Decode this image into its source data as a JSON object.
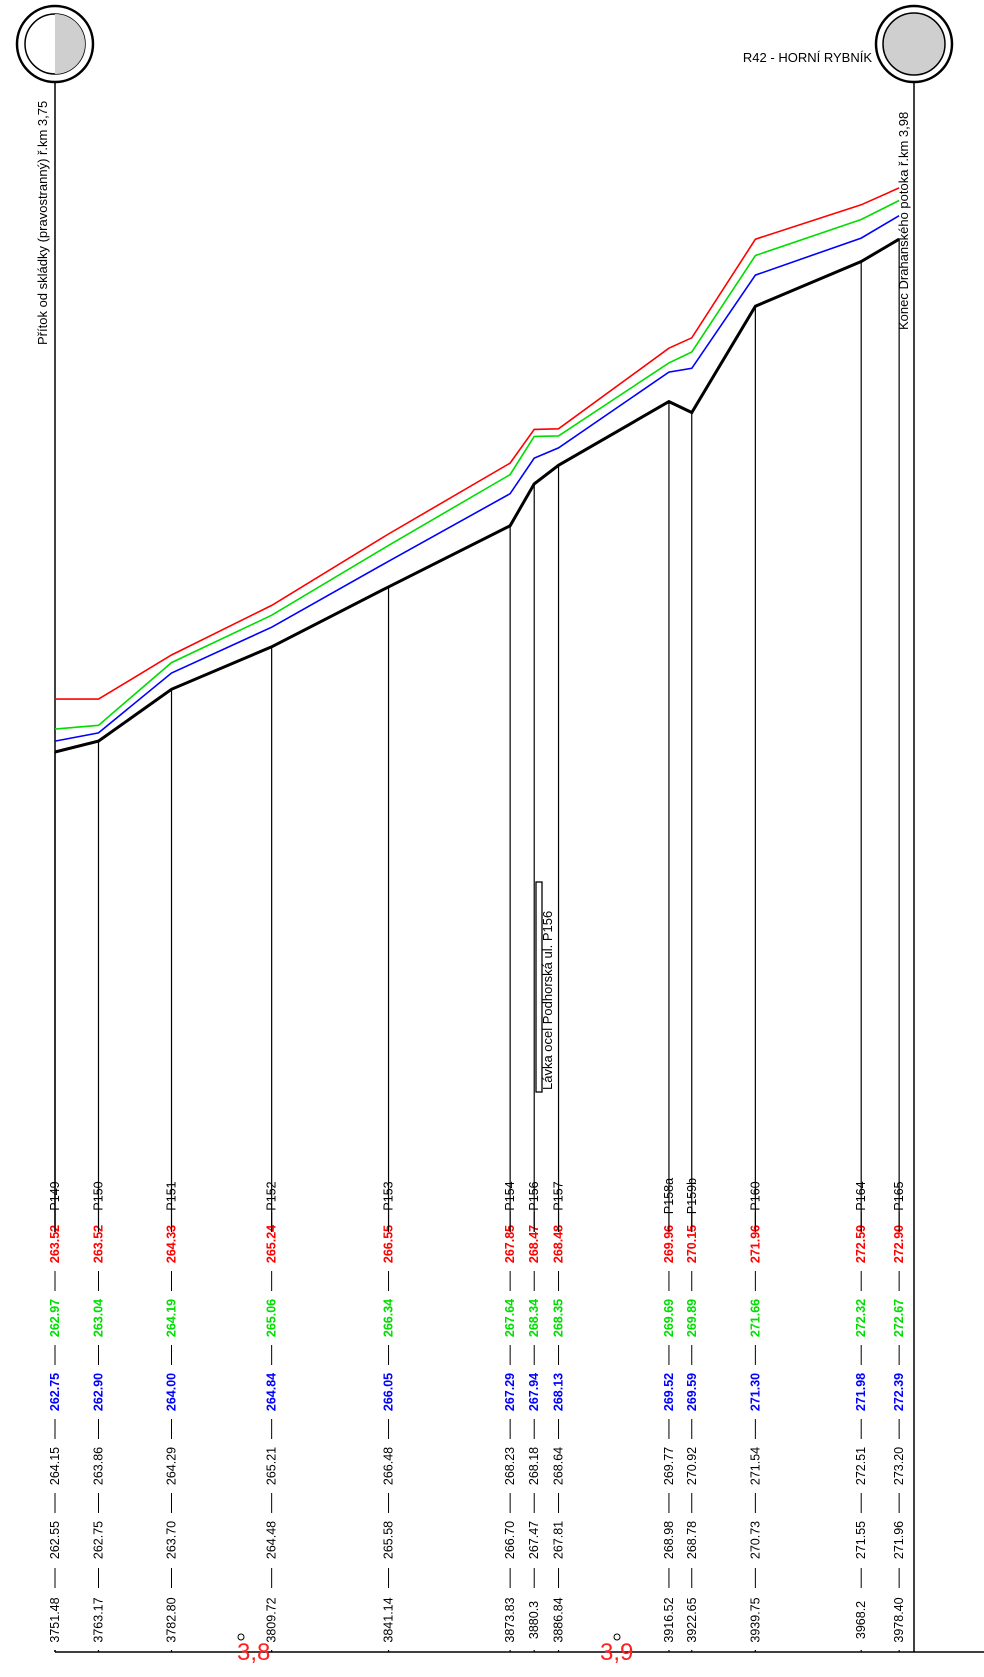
{
  "top_labels": {
    "left_ref": "Přítok od skládky (pravostranný) ř.km 3,75",
    "right_title": "R42 - HORNÍ RYBNÍK",
    "right_ref": "Konec Drahanského potoka ř.km 3,98"
  },
  "km_marks": [
    "3,8",
    "3,9"
  ],
  "bridge_label": "Lávka ocel Podhorská ul. P156",
  "colors": {
    "red": "#ff0000",
    "green": "#00dd00",
    "blue": "#0000ff",
    "black": "#000000"
  },
  "profiles": [
    {
      "station": "3751.48",
      "bed": "262.55",
      "bank": "264.15",
      "q_blue": "262.75",
      "q_green": "262.97",
      "q_red": "263.52",
      "id": "P149"
    },
    {
      "station": "3763.17",
      "bed": "262.75",
      "bank": "263.86",
      "q_blue": "262.90",
      "q_green": "263.04",
      "q_red": "263.52",
      "id": "P150"
    },
    {
      "station": "3782.80",
      "bed": "263.70",
      "bank": "264.29",
      "q_blue": "264.00",
      "q_green": "264.19",
      "q_red": "264.33",
      "id": "P151"
    },
    {
      "station": "3809.72",
      "bed": "264.48",
      "bank": "265.21",
      "q_blue": "264.84",
      "q_green": "265.06",
      "q_red": "265.24",
      "id": "P152"
    },
    {
      "station": "3841.14",
      "bed": "265.58",
      "bank": "266.48",
      "q_blue": "266.05",
      "q_green": "266.34",
      "q_red": "266.55",
      "id": "P153"
    },
    {
      "station": "3873.83",
      "bed": "266.70",
      "bank": "268.23",
      "q_blue": "267.29",
      "q_green": "267.64",
      "q_red": "267.85",
      "id": "P154"
    },
    {
      "station": "3880.3",
      "bed": "267.47",
      "bank": "268.18",
      "q_blue": "267.94",
      "q_green": "268.34",
      "q_red": "268.47",
      "id": "P156"
    },
    {
      "station": "3886.84",
      "bed": "267.81",
      "bank": "268.64",
      "q_blue": "268.13",
      "q_green": "268.35",
      "q_red": "268.48",
      "id": "P157"
    },
    {
      "station": "3916.52",
      "bed": "268.98",
      "bank": "269.77",
      "q_blue": "269.52",
      "q_green": "269.69",
      "q_red": "269.96",
      "id": "P158a"
    },
    {
      "station": "3922.65",
      "bed": "268.78",
      "bank": "270.92",
      "q_blue": "269.59",
      "q_green": "269.89",
      "q_red": "270.15",
      "id": "P159b"
    },
    {
      "station": "3939.75",
      "bed": "270.73",
      "bank": "271.54",
      "q_blue": "271.30",
      "q_green": "271.66",
      "q_red": "271.96",
      "id": "P160"
    },
    {
      "station": "3968.2",
      "bed": "271.55",
      "bank": "272.51",
      "q_blue": "271.98",
      "q_green": "272.32",
      "q_red": "272.59",
      "id": "P164"
    },
    {
      "station": "3978.40",
      "bed": "271.96",
      "bank": "273.20",
      "q_blue": "272.39",
      "q_green": "272.67",
      "q_red": "272.90",
      "id": "P165"
    }
  ]
}
